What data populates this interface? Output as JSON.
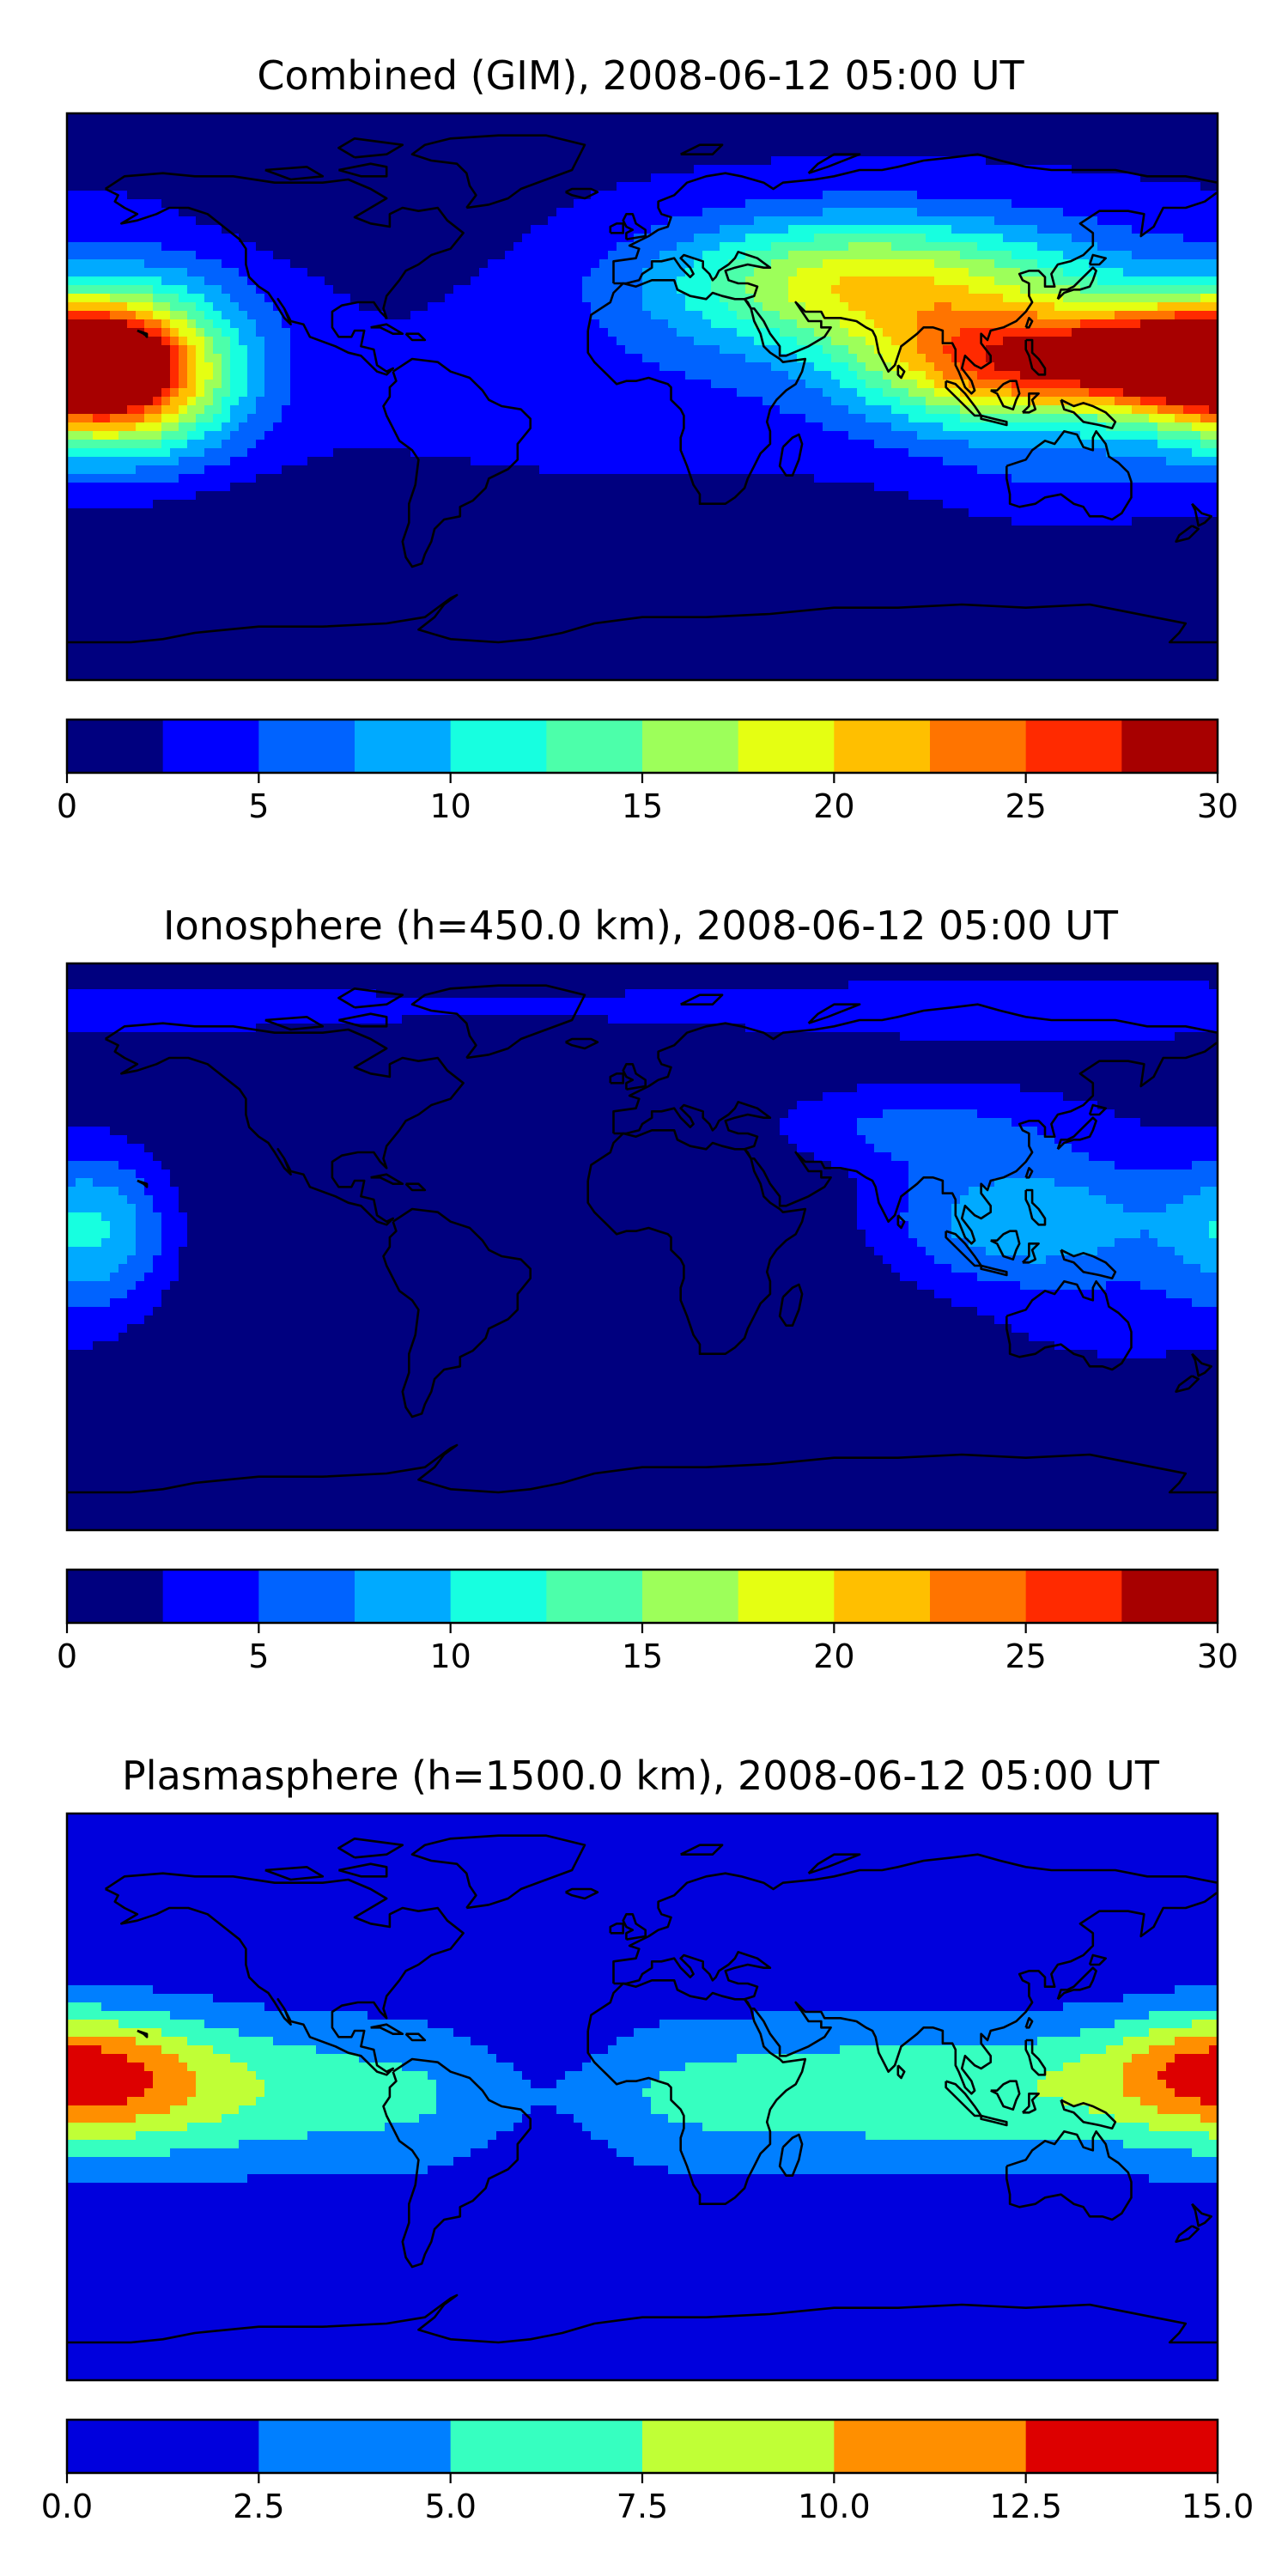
{
  "colors": {
    "jet12": [
      "#00007f",
      "#0000ff",
      "#0063ff",
      "#00aaff",
      "#17ffe0",
      "#4cffaa",
      "#9dff5a",
      "#e5ff12",
      "#ffbf00",
      "#ff7400",
      "#ff2a00",
      "#a70000"
    ],
    "jet6": [
      "#0000dd",
      "#007fff",
      "#36ffc0",
      "#c0ff36",
      "#ff8f00",
      "#dd0000"
    ],
    "coast": "#000000"
  },
  "panels": [
    {
      "id": "combined",
      "title": "Combined (GIM), 2008-06-12 05:00 UT",
      "colorbar": {
        "min": 0,
        "max": 30,
        "levels": 12,
        "palette": "jet12",
        "ticks": [
          "0",
          "5",
          "10",
          "15",
          "20",
          "25",
          "30"
        ]
      },
      "background_level": 2,
      "field": [
        {
          "lon": -170,
          "lat": 10,
          "val": 22,
          "slon": 22,
          "slat": 14
        },
        {
          "lon": -150,
          "lat": 18,
          "val": 7,
          "slon": 25,
          "slat": 20
        },
        {
          "lon": -160,
          "lat": -5,
          "val": 7,
          "slon": 25,
          "slat": 15
        },
        {
          "lon": 110,
          "lat": 10,
          "val": 20,
          "slon": 30,
          "slat": 14
        },
        {
          "lon": 160,
          "lat": 12,
          "val": 21,
          "slon": 25,
          "slat": 12
        },
        {
          "lon": 60,
          "lat": 35,
          "val": 10,
          "slon": 40,
          "slat": 15
        },
        {
          "lon": 90,
          "lat": 38,
          "val": 8,
          "slon": 55,
          "slat": 15
        },
        {
          "lon": -100,
          "lat": 55,
          "val": -1.5,
          "slon": 35,
          "slat": 10
        },
        {
          "lon": 0,
          "lat": -5,
          "val": 2,
          "slon": 60,
          "slat": 22
        },
        {
          "lon": -60,
          "lat": -40,
          "val": -2,
          "slon": 120,
          "slat": 12
        },
        {
          "lon": 0,
          "lat": -75,
          "val": -3,
          "slon": 360,
          "slat": 12
        },
        {
          "lon": 140,
          "lat": -25,
          "val": 3,
          "slon": 35,
          "slat": 12
        }
      ]
    },
    {
      "id": "ionosphere",
      "title": "Ionosphere  (h=450.0 km), 2008-06-12 05:00 UT",
      "colorbar": {
        "min": 0,
        "max": 30,
        "levels": 12,
        "palette": "jet12",
        "ticks": [
          "0",
          "5",
          "10",
          "15",
          "20",
          "25",
          "30"
        ]
      },
      "background_level": 1,
      "field": [
        {
          "lon": -40,
          "lat": 5,
          "val": -6,
          "slon": 65,
          "slat": 40
        },
        {
          "lon": -170,
          "lat": 5,
          "val": 9,
          "slon": 18,
          "slat": 18
        },
        {
          "lon": 120,
          "lat": 8,
          "val": 9,
          "slon": 35,
          "slat": 15
        },
        {
          "lon": 80,
          "lat": 38,
          "val": 5,
          "slon": 40,
          "slat": 10
        },
        {
          "lon": 150,
          "lat": -25,
          "val": 2,
          "slon": 30,
          "slat": 12
        },
        {
          "lon": 0,
          "lat": -72,
          "val": -4,
          "slon": 360,
          "slat": 12
        },
        {
          "lon": 0,
          "lat": 75,
          "val": 3,
          "slon": 360,
          "slat": 8
        }
      ]
    },
    {
      "id": "plasmasphere",
      "title": "Plasmasphere (h=1500.0 km), 2008-06-12 05:00 UT",
      "colorbar": {
        "min": 0,
        "max": 15,
        "levels": 6,
        "palette": "jet6",
        "ticks": [
          "0.0",
          "2.5",
          "5.0",
          "7.5",
          "10.0",
          "12.5",
          "15.0"
        ]
      },
      "background_level": 0,
      "field": [
        {
          "lon": 0,
          "lat": 0,
          "val": 5.5,
          "slon": 400,
          "slat": 20
        },
        {
          "lon": -168,
          "lat": 7,
          "val": 6,
          "slon": 25,
          "slat": 15
        },
        {
          "lon": 172,
          "lat": 10,
          "val": 4,
          "slon": 22,
          "slat": 12
        },
        {
          "lon": -30,
          "lat": 0,
          "val": -3,
          "slon": 18,
          "slat": 45
        },
        {
          "lon": -130,
          "lat": 5,
          "val": 1.5,
          "slon": 30,
          "slat": 14
        },
        {
          "lon": 110,
          "lat": 5,
          "val": 2,
          "slon": 50,
          "slat": 12
        }
      ]
    }
  ]
}
